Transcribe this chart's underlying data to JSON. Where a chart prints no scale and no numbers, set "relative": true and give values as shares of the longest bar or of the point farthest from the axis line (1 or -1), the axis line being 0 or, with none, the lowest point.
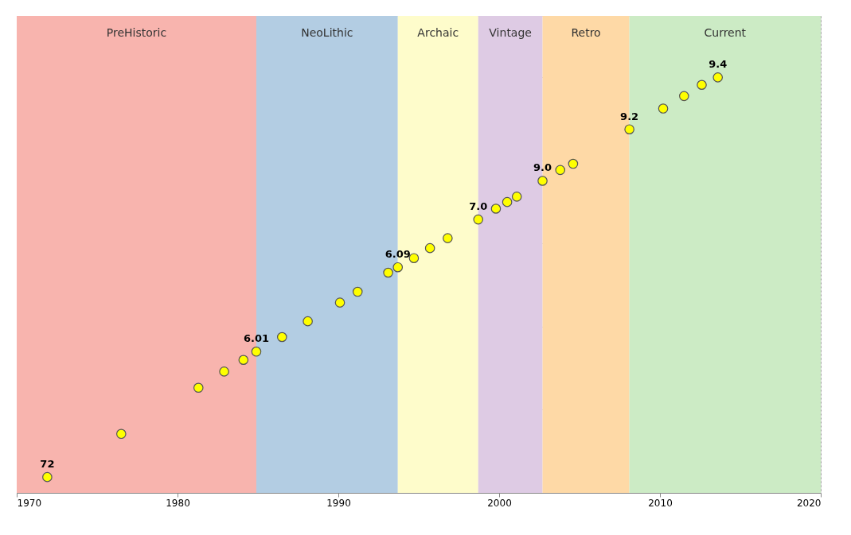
{
  "chart_data": {
    "type": "scatter",
    "relative": true,
    "x": [
      1971.9,
      1976.5,
      1981.3,
      1982.9,
      1984.1,
      1984.9,
      1986.5,
      1988.1,
      1990.1,
      1991.2,
      1993.1,
      1993.7,
      1994.7,
      1995.7,
      1996.8,
      1998.7,
      1999.8,
      2000.5,
      2001.1,
      2002.7,
      2003.8,
      2004.6,
      2008.1,
      2010.2,
      2011.5,
      2012.6,
      2013.6
    ],
    "series": [
      {
        "color": "#ffff00",
        "values": [
          0.038,
          0.142,
          0.253,
          0.292,
          0.32,
          0.34,
          0.375,
          0.413,
          0.458,
          0.484,
          0.53,
          0.543,
          0.565,
          0.589,
          0.613,
          0.658,
          0.684,
          0.7,
          0.713,
          0.751,
          0.777,
          0.792,
          0.875,
          0.925,
          0.955,
          0.982,
          1.0
        ]
      }
    ],
    "annotations": [
      {
        "text": "72",
        "x": 1971.9,
        "y": 0.038
      },
      {
        "text": "6.01",
        "x": 1984.9,
        "y": 0.34
      },
      {
        "text": "6.09",
        "x": 1993.7,
        "y": 0.543
      },
      {
        "text": "7.0",
        "x": 1998.7,
        "y": 0.658
      },
      {
        "text": "9.0",
        "x": 2002.7,
        "y": 0.751
      },
      {
        "text": "9.2",
        "x": 2008.1,
        "y": 0.875
      },
      {
        "text": "9.4",
        "x": 2013.6,
        "y": 1.0
      }
    ],
    "xlim": [
      1970,
      2020
    ],
    "xticks": [
      1970,
      1980,
      1990,
      2000,
      2010,
      2020
    ],
    "marker": "circle",
    "grid": true,
    "bands": [
      {
        "axis": "x",
        "from": 1970,
        "to": 1984.9,
        "label": "PreHistoric",
        "color": "#f8b4ae"
      },
      {
        "axis": "x",
        "from": 1984.9,
        "to": 1993.7,
        "label": "NeoLithic",
        "color": "#b3cde3"
      },
      {
        "axis": "x",
        "from": 1993.7,
        "to": 1998.7,
        "label": "Archaic",
        "color": "#fefccb"
      },
      {
        "axis": "x",
        "from": 1998.7,
        "to": 2002.7,
        "label": "Vintage",
        "color": "#decbe4"
      },
      {
        "axis": "x",
        "from": 2002.7,
        "to": 2008.1,
        "label": "Retro",
        "color": "#fed9a6"
      },
      {
        "axis": "x",
        "from": 2008.1,
        "to": 2020,
        "label": "Current",
        "color": "#ccebc5"
      }
    ]
  }
}
